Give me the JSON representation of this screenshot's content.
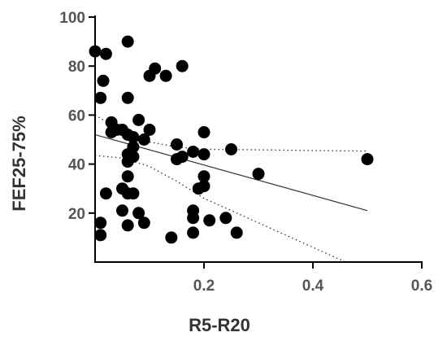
{
  "chart_data": {
    "type": "scatter",
    "title": "",
    "xlabel": "R5-R20",
    "ylabel": "FEF25-75%",
    "xlim": [
      0,
      0.6
    ],
    "ylim": [
      0,
      100
    ],
    "x_ticks": [
      0.2,
      0.4,
      0.6
    ],
    "x_tick_labels": [
      "0.2",
      "0.4",
      "0.6"
    ],
    "y_ticks": [
      20,
      40,
      60,
      80,
      100
    ],
    "y_tick_labels": [
      "20",
      "40",
      "60",
      "80",
      "100"
    ],
    "grid": false,
    "legend": "none",
    "marker_color": "#000000",
    "points": [
      {
        "x": 0.0,
        "y": 86
      },
      {
        "x": 0.01,
        "y": 67
      },
      {
        "x": 0.01,
        "y": 16
      },
      {
        "x": 0.01,
        "y": 11
      },
      {
        "x": 0.015,
        "y": 74
      },
      {
        "x": 0.02,
        "y": 85
      },
      {
        "x": 0.02,
        "y": 28
      },
      {
        "x": 0.03,
        "y": 53
      },
      {
        "x": 0.03,
        "y": 57
      },
      {
        "x": 0.04,
        "y": 54
      },
      {
        "x": 0.05,
        "y": 54
      },
      {
        "x": 0.05,
        "y": 30
      },
      {
        "x": 0.05,
        "y": 21
      },
      {
        "x": 0.06,
        "y": 90
      },
      {
        "x": 0.06,
        "y": 67
      },
      {
        "x": 0.06,
        "y": 52
      },
      {
        "x": 0.06,
        "y": 44
      },
      {
        "x": 0.06,
        "y": 41
      },
      {
        "x": 0.06,
        "y": 35
      },
      {
        "x": 0.06,
        "y": 28
      },
      {
        "x": 0.06,
        "y": 15
      },
      {
        "x": 0.07,
        "y": 51
      },
      {
        "x": 0.07,
        "y": 47
      },
      {
        "x": 0.07,
        "y": 43
      },
      {
        "x": 0.07,
        "y": 28
      },
      {
        "x": 0.08,
        "y": 58
      },
      {
        "x": 0.08,
        "y": 20
      },
      {
        "x": 0.09,
        "y": 50
      },
      {
        "x": 0.09,
        "y": 16
      },
      {
        "x": 0.1,
        "y": 76
      },
      {
        "x": 0.1,
        "y": 54
      },
      {
        "x": 0.11,
        "y": 79
      },
      {
        "x": 0.13,
        "y": 76
      },
      {
        "x": 0.14,
        "y": 10
      },
      {
        "x": 0.15,
        "y": 48
      },
      {
        "x": 0.15,
        "y": 42
      },
      {
        "x": 0.16,
        "y": 80
      },
      {
        "x": 0.16,
        "y": 43
      },
      {
        "x": 0.18,
        "y": 45
      },
      {
        "x": 0.18,
        "y": 21
      },
      {
        "x": 0.18,
        "y": 18
      },
      {
        "x": 0.18,
        "y": 12
      },
      {
        "x": 0.19,
        "y": 30
      },
      {
        "x": 0.2,
        "y": 53
      },
      {
        "x": 0.2,
        "y": 44
      },
      {
        "x": 0.2,
        "y": 35
      },
      {
        "x": 0.2,
        "y": 31
      },
      {
        "x": 0.21,
        "y": 17
      },
      {
        "x": 0.24,
        "y": 18
      },
      {
        "x": 0.25,
        "y": 46
      },
      {
        "x": 0.26,
        "y": 12
      },
      {
        "x": 0.3,
        "y": 36
      },
      {
        "x": 0.5,
        "y": 42
      }
    ],
    "regression_line": {
      "x": [
        0.0,
        0.5
      ],
      "y": [
        52,
        21
      ]
    },
    "confidence_band_upper": {
      "x": [
        0.0,
        0.05,
        0.1,
        0.15,
        0.2,
        0.3,
        0.4,
        0.5
      ],
      "y": [
        60,
        53.5,
        49,
        47,
        46,
        45.8,
        45.5,
        45.3
      ]
    },
    "confidence_band_lower": {
      "x": [
        0.0,
        0.05,
        0.1,
        0.15,
        0.2,
        0.3,
        0.4,
        0.48
      ],
      "y": [
        43.5,
        42.5,
        39,
        33,
        26,
        16,
        6,
        -2
      ]
    }
  }
}
